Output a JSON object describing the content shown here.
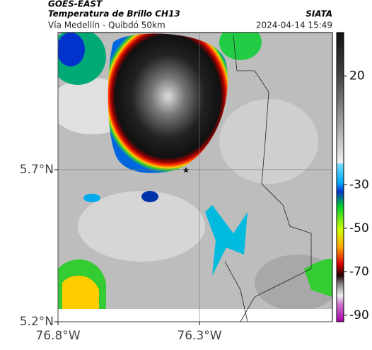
{
  "header": {
    "title": "GOES-EAST",
    "subtitle": "Temperatura de Brillo CH13",
    "source": "SIATA",
    "region": "Vía Medellín - Quibdó 50km",
    "timestamp": "2024-04-14 15:49"
  },
  "map": {
    "latlim": [
      5.2,
      6.151
    ],
    "lonlim": [
      -76.8,
      -75.83
    ],
    "lat_ticks": [
      {
        "value": 5.7,
        "label": "5.7°N"
      },
      {
        "value": 5.2,
        "label": "5.2°N"
      }
    ],
    "lon_ticks": [
      {
        "value": -76.8,
        "label": "76.8°W"
      },
      {
        "value": -76.3,
        "label": "76.3°W"
      }
    ],
    "grid": true
  },
  "colorbar": {
    "lim": [
      -93,
      40
    ],
    "ticks": [
      20,
      -30,
      -50,
      -70,
      -90
    ]
  }
}
